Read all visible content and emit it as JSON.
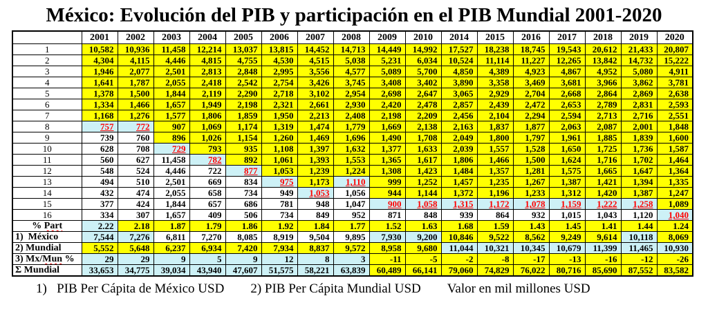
{
  "title": "México: Evolución del PIB y participación en el PIB Mundial 2001-2020",
  "colors": {
    "yellow": "#FFFF00",
    "cyan": "#CDF1F6",
    "red": "#FF0000"
  },
  "table": {
    "years": [
      "2001",
      "2002",
      "2003",
      "2004",
      "2005",
      "2006",
      "2007",
      "2008",
      "2009",
      "2010",
      "2014",
      "2015",
      "2016",
      "2017",
      "2018",
      "2019",
      "2020"
    ],
    "rows": [
      {
        "label": "1",
        "values": [
          "10,582",
          "10,936",
          "11,458",
          "12,214",
          "13,037",
          "13,815",
          "14,452",
          "14,713",
          "14,449",
          "14,992",
          "17,527",
          "18,238",
          "18,745",
          "19,543",
          "20,612",
          "21,433",
          "20,807"
        ],
        "styles": "yyyyyyyyyyyyyyyyy"
      },
      {
        "label": "2",
        "values": [
          "4,304",
          "4,115",
          "4,446",
          "4,815",
          "4,755",
          "4,530",
          "4,515",
          "5,038",
          "5,231",
          "6,034",
          "10,524",
          "11,114",
          "11,227",
          "12,265",
          "13,842",
          "14,732",
          "15,222"
        ],
        "styles": "yyyyyyyyyyyyyyyyy"
      },
      {
        "label": "3",
        "values": [
          "1,946",
          "2,077",
          "2,501",
          "2,813",
          "2,848",
          "2,995",
          "3,556",
          "4,577",
          "5,089",
          "5,700",
          "4,850",
          "4,389",
          "4,923",
          "4,867",
          "4,952",
          "5,080",
          "4,911"
        ],
        "styles": "yyyyyyyyyyyyyyyyy"
      },
      {
        "label": "4",
        "values": [
          "1,641",
          "1,787",
          "2,055",
          "2,418",
          "2,542",
          "2,754",
          "3,426",
          "3,745",
          "3,408",
          "3,402",
          "3,890",
          "3,358",
          "3,469",
          "3,681",
          "3,966",
          "3,862",
          "3,781"
        ],
        "styles": "yyyyyyyyyyyyyyyyy"
      },
      {
        "label": "5",
        "values": [
          "1,378",
          "1,500",
          "1,844",
          "2,119",
          "2,290",
          "2,718",
          "3,102",
          "2,954",
          "2,698",
          "2,647",
          "3,065",
          "2,929",
          "2,704",
          "2,668",
          "2,864",
          "2,869",
          "2,638"
        ],
        "styles": "yyyyyyyyyyyyyyyyy"
      },
      {
        "label": "6",
        "values": [
          "1,334",
          "1,466",
          "1,657",
          "1,949",
          "2,198",
          "2,321",
          "2,661",
          "2,930",
          "2,420",
          "2,478",
          "2,857",
          "2,439",
          "2,472",
          "2,653",
          "2,789",
          "2,831",
          "2,593"
        ],
        "styles": "yyyyyyyyyyyyyyyyy"
      },
      {
        "label": "7",
        "values": [
          "1,168",
          "1,276",
          "1,577",
          "1,806",
          "1,859",
          "1,950",
          "2,213",
          "2,408",
          "2,198",
          "2,209",
          "2,456",
          "2,104",
          "2,294",
          "2,594",
          "2,713",
          "2,716",
          "2,551"
        ],
        "styles": "yyyyyyyyyyyyyyyyy"
      },
      {
        "label": "8",
        "values": [
          "757",
          "772",
          "907",
          "1,069",
          "1,174",
          "1,319",
          "1,474",
          "1,779",
          "1,669",
          "2,138",
          "2,163",
          "1,837",
          "1,877",
          "2,063",
          "2,087",
          "2,001",
          "1,848"
        ],
        "styles": "rryyyyyyyyyyyyyyy"
      },
      {
        "label": "9",
        "values": [
          "739",
          "760",
          "896",
          "1,026",
          "1,154",
          "1,260",
          "1,469",
          "1,696",
          "1,490",
          "1,708",
          "2,049",
          "1,800",
          "1,797",
          "1,961",
          "1,885",
          "1,839",
          "1,600"
        ],
        "styles": "wwyyyyyyyyyyyyyyy"
      },
      {
        "label": "10",
        "values": [
          "628",
          "708",
          "729",
          "793",
          "935",
          "1,108",
          "1,397",
          "1,632",
          "1,377",
          "1,633",
          "2,039",
          "1,557",
          "1,528",
          "1,650",
          "1,725",
          "1,736",
          "1,587"
        ],
        "styles": "wwryyyyyyyyyyyyyy"
      },
      {
        "label": "11",
        "values": [
          "560",
          "627",
          "11,458",
          "782",
          "892",
          "1,061",
          "1,393",
          "1,553",
          "1,365",
          "1,617",
          "1,806",
          "1,466",
          "1,500",
          "1,624",
          "1,716",
          "1,702",
          "1,464"
        ],
        "styles": "wwwryyyyyyyyyyyyy"
      },
      {
        "label": "12",
        "values": [
          "548",
          "524",
          "4,446",
          "722",
          "877",
          "1,053",
          "1,239",
          "1,224",
          "1,308",
          "1,423",
          "1,484",
          "1,357",
          "1,281",
          "1,575",
          "1,665",
          "1,647",
          "1,364"
        ],
        "styles": "wwwwryyyyyyyyyyyy"
      },
      {
        "label": "13",
        "values": [
          "494",
          "510",
          "2,501",
          "669",
          "834",
          "975",
          "1,173",
          "1,110",
          "999",
          "1,252",
          "1,457",
          "1,235",
          "1,267",
          "1,387",
          "1,421",
          "1,394",
          "1,335"
        ],
        "styles": "wwwwwryryyyyyyyyy"
      },
      {
        "label": "14",
        "values": [
          "432",
          "474",
          "2,055",
          "658",
          "734",
          "949",
          "1,053",
          "1,056",
          "944",
          "1,144",
          "1,372",
          "1,196",
          "1,233",
          "1,312",
          "1,420",
          "1,387",
          "1,247"
        ],
        "styles": "wwwwwwrwyyyyyyyyy"
      },
      {
        "label": "15",
        "values": [
          "377",
          "424",
          "1,844",
          "657",
          "686",
          "781",
          "948",
          "1,047",
          "900",
          "1,058",
          "1,315",
          "1,172",
          "1,078",
          "1,159",
          "1,222",
          "1,258",
          "1,089"
        ],
        "styles": "wwwwwwwwrrrrrrrry"
      },
      {
        "label": "16",
        "values": [
          "334",
          "307",
          "1,657",
          "409",
          "506",
          "734",
          "849",
          "952",
          "871",
          "848",
          "939",
          "864",
          "932",
          "1,015",
          "1,043",
          "1,120",
          "1,040"
        ],
        "styles": "wwwwwwwwwwwwwwwwr"
      },
      {
        "label": "% Part",
        "wavy": "Part",
        "values": [
          "2.22",
          "2.18",
          "1.87",
          "1.79",
          "1.86",
          "1.92",
          "1.84",
          "1.77",
          "1.52",
          "1.63",
          "1.68",
          "1.59",
          "1.43",
          "1.45",
          "1.41",
          "1.44",
          "1.24"
        ],
        "styles": "cyyyyyyyyyyyyyyyy"
      },
      {
        "label": "1)  México",
        "values": [
          "7,544",
          "7,276",
          "6,811",
          "7,270",
          "8,085",
          "8,919",
          "9,504",
          "9,895",
          "7,930",
          "9,200",
          "10,846",
          "9,522",
          "8,562",
          "9,249",
          "9,614",
          "10,118",
          "8,069"
        ],
        "styles": "ccwwwwwwccyyyyycy"
      },
      {
        "label": "2) Mundial",
        "values": [
          "5,552",
          "5,648",
          "6,237",
          "6,934",
          "7,420",
          "7,934",
          "8,837",
          "9,572",
          "8,958",
          "9,680",
          "11,044",
          "10,321",
          "10,345",
          "10,679",
          "11,399",
          "11,465",
          "10,930"
        ],
        "styles": "yyyyyyyyyyccccccc"
      },
      {
        "label": "3) Mx/Mun %",
        "wavy": "Mun",
        "values": [
          "29",
          "29",
          "9",
          "5",
          "9",
          "12",
          "8",
          "3",
          "-11",
          "-5",
          "-2",
          "-8",
          "-17",
          "-13",
          "-16",
          "-12",
          "-26"
        ],
        "styles": "ccccccccyyyyyyyyy"
      },
      {
        "label": "Σ Mundial",
        "values": [
          "33,653",
          "34,775",
          "39,034",
          "43,940",
          "47,607",
          "51,575",
          "58,221",
          "63,839",
          "60,489",
          "66,141",
          "79,060",
          "74,829",
          "76,022",
          "80,716",
          "85,690",
          "87,552",
          "83,582"
        ],
        "styles": "ccccccccyyyyyyyyy"
      }
    ]
  },
  "footnotes": [
    "1)   PIB Per Cápita de México USD",
    "2) PIB Per Cápita Mundial USD",
    "Valor en mil millones USD"
  ]
}
